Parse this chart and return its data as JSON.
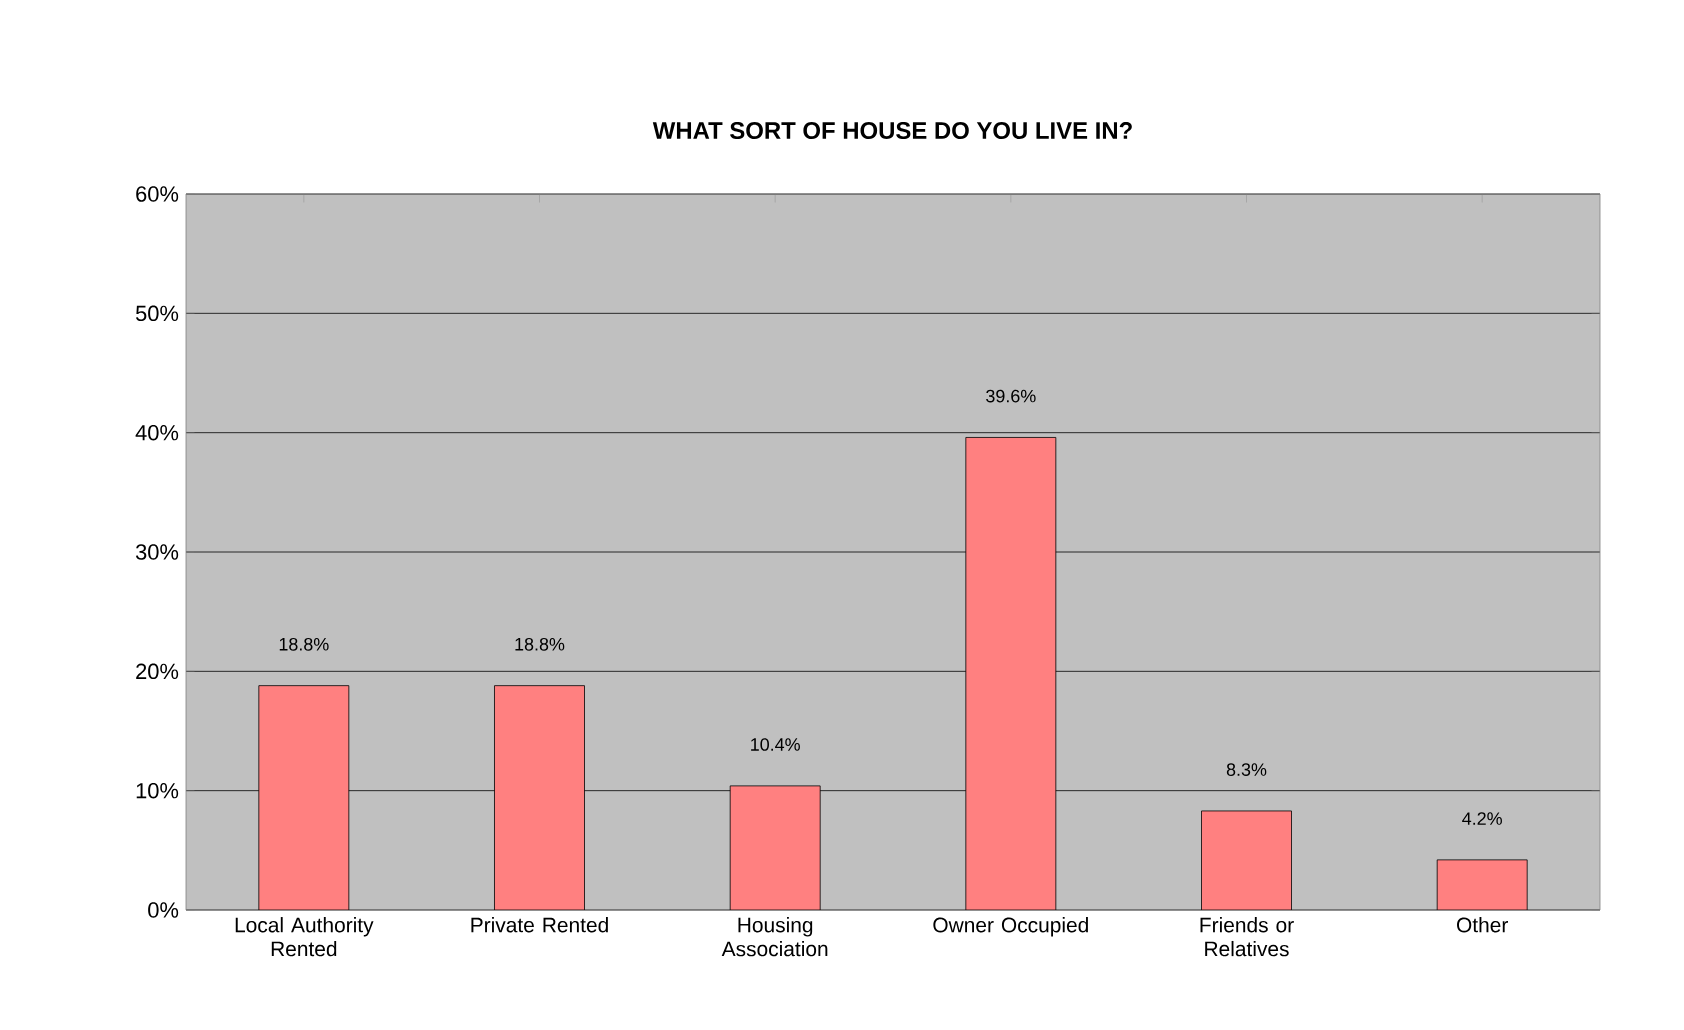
{
  "chart_data": {
    "type": "bar",
    "title": "WHAT SORT OF HOUSE DO YOU LIVE IN?",
    "categories": [
      "Local Authority Rented",
      "Private Rented",
      "Housing Association",
      "Owner Occupied",
      "Friends or Relatives",
      "Other"
    ],
    "values": [
      18.8,
      18.8,
      10.4,
      39.6,
      8.3,
      4.2
    ],
    "value_labels": [
      "18.8%",
      "18.8%",
      "10.4%",
      "39.6%",
      "8.3%",
      "4.2%"
    ],
    "color": "#ff8080",
    "ylim": [
      0,
      60
    ],
    "yticks": [
      {
        "value": 0,
        "label": "0%"
      },
      {
        "value": 10,
        "label": "10%"
      },
      {
        "value": 20,
        "label": "20%"
      },
      {
        "value": 30,
        "label": "30%"
      },
      {
        "value": 40,
        "label": "40%"
      },
      {
        "value": 50,
        "label": "50%"
      },
      {
        "value": 60,
        "label": "60%"
      }
    ],
    "grid": "y"
  }
}
